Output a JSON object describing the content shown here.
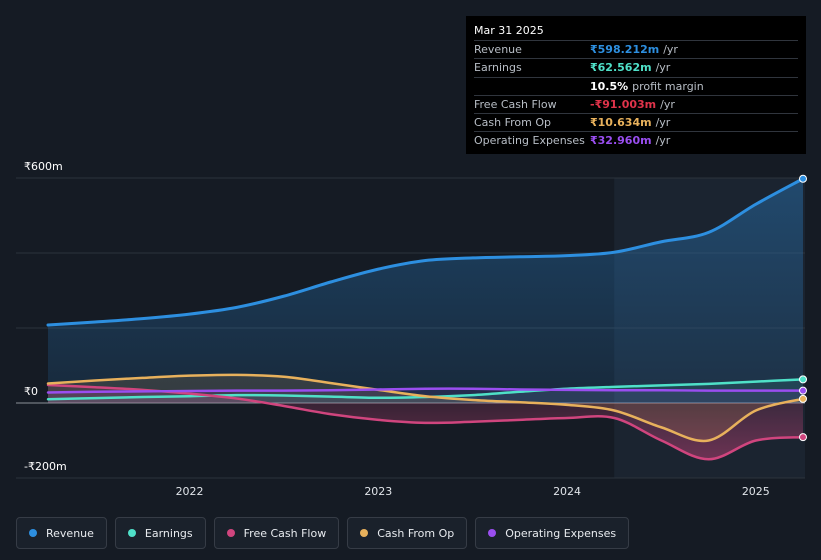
{
  "colors": {
    "revenue": "#2d8fe0",
    "earnings": "#4fe0c8",
    "free_cash_flow": "#d0457e",
    "cash_from_op": "#e8b15c",
    "operating_expenses": "#9a4ef0"
  },
  "tooltip": {
    "date": "Mar 31 2025",
    "rows": [
      {
        "label": "Revenue",
        "value": "₹598.212m",
        "unit": "/yr",
        "color": "#2d8fe0"
      },
      {
        "label": "Earnings",
        "value": "₹62.562m",
        "unit": "/yr",
        "color": "#4fe0c8"
      },
      {
        "label": "",
        "value": "10.5%",
        "unit": "profit margin",
        "color": "#ffffff"
      },
      {
        "label": "Free Cash Flow",
        "value": "-₹91.003m",
        "unit": "/yr",
        "color": "#e0334a"
      },
      {
        "label": "Cash From Op",
        "value": "₹10.634m",
        "unit": "/yr",
        "color": "#e8b15c"
      },
      {
        "label": "Operating Expenses",
        "value": "₹32.960m",
        "unit": "/yr",
        "color": "#9a4ef0"
      }
    ]
  },
  "legend": [
    {
      "label": "Revenue",
      "color": "#2d8fe0"
    },
    {
      "label": "Earnings",
      "color": "#4fe0c8"
    },
    {
      "label": "Free Cash Flow",
      "color": "#d0457e"
    },
    {
      "label": "Cash From Op",
      "color": "#e8b15c"
    },
    {
      "label": "Operating Expenses",
      "color": "#9a4ef0"
    }
  ],
  "chart_data": {
    "type": "line",
    "y_labels": [
      "₹600m",
      "₹0",
      "-₹200m"
    ],
    "x_ticks": [
      "2022",
      "2023",
      "2024",
      "2025"
    ],
    "xlim": [
      2021.25,
      2025.25
    ],
    "ylim": [
      -200,
      600
    ],
    "gridlines": [
      600,
      400,
      200,
      0,
      -200
    ],
    "highlight_from": 2024.25,
    "grid": true,
    "legend_position": "bottom",
    "series": [
      {
        "name": "Revenue",
        "key": "revenue",
        "x": [
          2021.25,
          2021.5,
          2021.75,
          2022.0,
          2022.25,
          2022.5,
          2022.75,
          2023.0,
          2023.25,
          2023.5,
          2023.75,
          2024.0,
          2024.25,
          2024.5,
          2024.75,
          2025.0,
          2025.25
        ],
        "y": [
          208,
          216,
          225,
          237,
          255,
          285,
          323,
          357,
          380,
          387,
          390,
          393,
          402,
          430,
          455,
          530,
          598
        ]
      },
      {
        "name": "Earnings",
        "key": "earnings",
        "x": [
          2021.25,
          2021.5,
          2021.75,
          2022.0,
          2022.25,
          2022.5,
          2022.75,
          2023.0,
          2023.25,
          2023.5,
          2023.75,
          2024.0,
          2024.25,
          2024.5,
          2024.75,
          2025.0,
          2025.25
        ],
        "y": [
          10,
          13,
          16,
          18,
          21,
          20,
          17,
          14,
          16,
          21,
          30,
          38,
          43,
          47,
          51,
          57,
          63
        ]
      },
      {
        "name": "Free Cash Flow",
        "key": "free_cash_flow",
        "x": [
          2021.25,
          2021.5,
          2021.75,
          2022.0,
          2022.25,
          2022.5,
          2022.75,
          2023.0,
          2023.25,
          2023.5,
          2023.75,
          2024.0,
          2024.25,
          2024.5,
          2024.75,
          2025.0,
          2025.25
        ],
        "y": [
          48,
          42,
          35,
          25,
          12,
          -8,
          -30,
          -45,
          -53,
          -50,
          -45,
          -40,
          -40,
          -100,
          -150,
          -100,
          -91
        ]
      },
      {
        "name": "Cash From Op",
        "key": "cash_from_op",
        "x": [
          2021.25,
          2021.5,
          2021.75,
          2022.0,
          2022.25,
          2022.5,
          2022.75,
          2023.0,
          2023.25,
          2023.5,
          2023.75,
          2024.0,
          2024.25,
          2024.5,
          2024.75,
          2025.0,
          2025.25
        ],
        "y": [
          52,
          60,
          67,
          73,
          75,
          70,
          53,
          35,
          18,
          8,
          2,
          -5,
          -20,
          -65,
          -100,
          -20,
          11
        ]
      },
      {
        "name": "Operating Expenses",
        "key": "operating_expenses",
        "x": [
          2021.25,
          2021.5,
          2021.75,
          2022.0,
          2022.25,
          2022.5,
          2022.75,
          2023.0,
          2023.25,
          2023.5,
          2023.75,
          2024.0,
          2024.25,
          2024.5,
          2024.75,
          2025.0,
          2025.25
        ],
        "y": [
          28,
          30,
          31,
          32,
          33,
          33,
          34,
          36,
          38,
          38,
          36,
          35,
          34,
          34,
          33,
          33,
          33
        ]
      }
    ]
  }
}
